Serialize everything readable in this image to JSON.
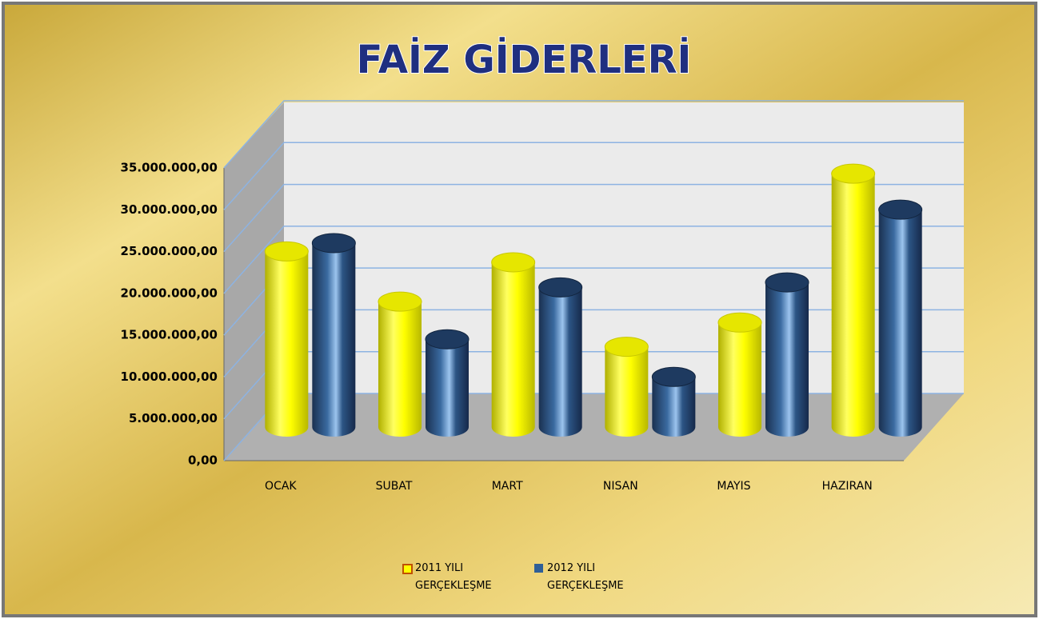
{
  "chart_data": {
    "type": "bar3d",
    "title": "FAİZ GİDERLERİ",
    "categories": [
      "OCAK",
      "SUBAT",
      "MART",
      "NISAN",
      "MAYIS",
      "HAZIRAN"
    ],
    "series": [
      {
        "name": "2011 YILI GERÇEKLEŞME",
        "color": "#ffff00",
        "values": [
          21000000,
          15000000,
          19700000,
          9600000,
          12500000,
          30300000
        ]
      },
      {
        "name": "2012 YILI GERÇEKLEŞME",
        "color": "#2f5f97",
        "values": [
          22000000,
          10500000,
          16700000,
          6000000,
          17300000,
          26000000
        ]
      }
    ],
    "ylim": [
      0,
      35000000
    ],
    "yticks": [
      {
        "value": 0,
        "label": "0,00"
      },
      {
        "value": 5000000,
        "label": "5.000.000,00"
      },
      {
        "value": 10000000,
        "label": "10.000.000,00"
      },
      {
        "value": 15000000,
        "label": "15.000.000,00"
      },
      {
        "value": 20000000,
        "label": "20.000.000,00"
      },
      {
        "value": 25000000,
        "label": "25.000.000,00"
      },
      {
        "value": 30000000,
        "label": "30.000.000,00"
      },
      {
        "value": 35000000,
        "label": "35.000.000,00"
      }
    ],
    "grid": true
  }
}
